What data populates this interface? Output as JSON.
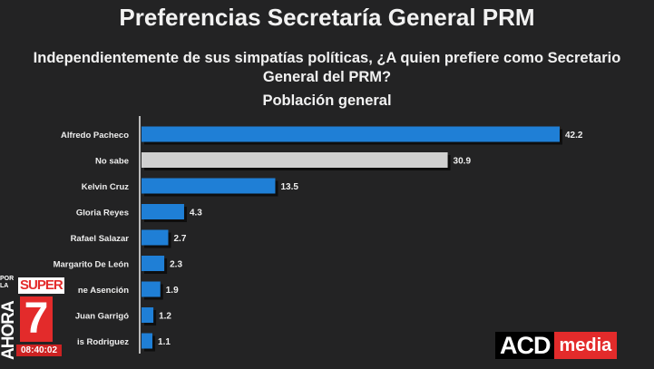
{
  "chart_data": {
    "type": "bar",
    "orientation": "horizontal",
    "title": "Preferencias Secretaría General PRM",
    "subtitle": "Independientemente de sus simpatías políticas, ¿A quien prefiere como Secretario General del PRM?",
    "subtitle_line1": "Independientemente de sus simpatías políticas, ¿A quien prefiere como Secretario",
    "subtitle_line2": "General del PRM?",
    "population": "Población general",
    "categories": [
      "Alfredo Pacheco",
      "No sabe",
      "Kelvin Cruz",
      "Gloria Reyes",
      "Rafael Salazar",
      "Margarito De León",
      "ne Asención",
      "Juan Garrigó",
      "is Rodriguez"
    ],
    "values": [
      42.2,
      30.9,
      13.5,
      4.3,
      2.7,
      2.3,
      1.9,
      1.2,
      1.1
    ],
    "labels": [
      "42.2",
      "30.9",
      "13.5",
      "4.3",
      "2.7",
      "2.3",
      "1.9",
      "1.2",
      "1.1"
    ],
    "colors": [
      "#1f7fd6",
      "#d0d0d0",
      "#1f7fd6",
      "#1f7fd6",
      "#1f7fd6",
      "#1f7fd6",
      "#1f7fd6",
      "#1f7fd6",
      "#1f7fd6"
    ],
    "xlim": [
      0,
      45
    ],
    "grid": false
  },
  "overlay": {
    "porla": "POR LA",
    "super": "SUPER",
    "seven": "7",
    "ahora": "AHORA",
    "time": "08:40:02",
    "acd": "ACD",
    "media": "media"
  }
}
